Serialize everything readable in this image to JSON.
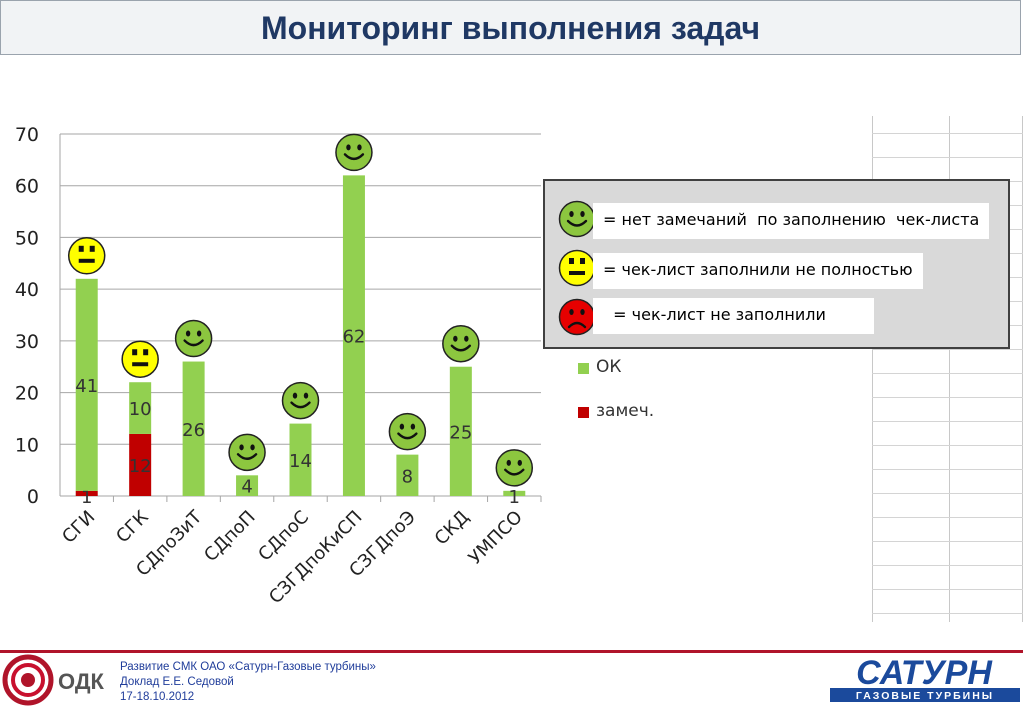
{
  "title": "Мониторинг выполнения задач",
  "legend_box": {
    "items": [
      {
        "face": "happy",
        "color": "#8cc63f",
        "text": "= нет замечаний  по заполнению  чек-листа"
      },
      {
        "face": "neutral",
        "color": "#ffff00",
        "text": "= чек-лист заполнили не полностью"
      },
      {
        "face": "sad",
        "color": "#e60000",
        "text": "  = чек-лист не заполнили"
      }
    ]
  },
  "series_legend": [
    {
      "label": "ОК",
      "color": "#92d050"
    },
    {
      "label": "замеч.",
      "color": "#c00000"
    }
  ],
  "chart_data": {
    "type": "bar",
    "stacked": true,
    "categories": [
      "СГИ",
      "СГК",
      "СДпоЗиТ",
      "СДпоП",
      "СДпоС",
      "СЗГДпоКиСП",
      "СЗГДпоЭ",
      "СКД",
      "УМПСО"
    ],
    "series": [
      {
        "name": "замеч.",
        "color": "#c00000",
        "values": [
          1,
          12,
          0,
          0,
          0,
          0,
          0,
          0,
          0
        ]
      },
      {
        "name": "ОК",
        "color": "#92d050",
        "values": [
          41,
          10,
          26,
          4,
          14,
          62,
          8,
          25,
          1
        ]
      }
    ],
    "faces": [
      "neutral",
      "neutral",
      "happy",
      "happy",
      "happy",
      "happy",
      "happy",
      "happy",
      "happy"
    ],
    "ylim": [
      0,
      70
    ],
    "yticks": [
      0,
      10,
      20,
      30,
      40,
      50,
      60,
      70
    ],
    "grid": true,
    "title": "",
    "xlabel": "",
    "ylabel": ""
  },
  "footer": {
    "line1": "Развитие СМК ОАО «Сатурн-Газовые турбины»",
    "line2": "Доклад Е.Е. Седовой",
    "line3": "17-18.10.2012",
    "left_logo_text": "ОДК",
    "right_logo_text": "САТУРН",
    "right_logo_subtext": "ГАЗОВЫЕ ТУРБИНЫ"
  }
}
